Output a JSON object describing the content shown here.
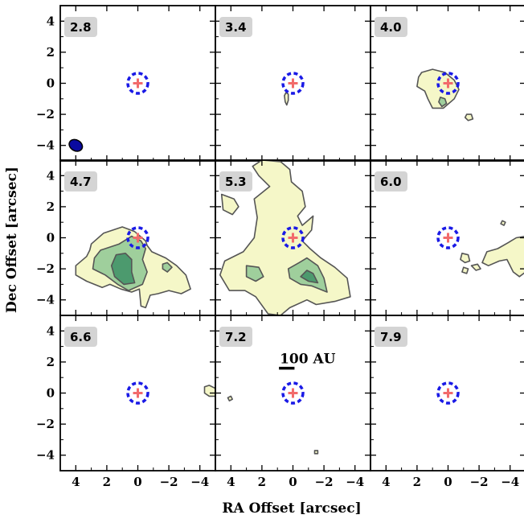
{
  "chart_data": {
    "type": "contour_grid",
    "xlabel": "RA Offset [arcsec]",
    "ylabel": "Dec Offset [arcsec]",
    "xlim": [
      5,
      -5
    ],
    "ylim": [
      -5,
      5
    ],
    "x_ticks": [
      4,
      2,
      0,
      -2,
      -4
    ],
    "y_ticks": [
      4,
      2,
      0,
      -2,
      -4
    ],
    "x_tick_labels": [
      "4",
      "2",
      "0",
      "−2",
      "−4"
    ],
    "y_tick_labels": [
      "4",
      "2",
      "0",
      "−2",
      "−4"
    ],
    "colors": {
      "contour_low": "#f5f7c8",
      "contour_mid": "#9fcf9c",
      "contour_high": "#4c9a6e",
      "contour_line": "#555555",
      "marker_plus": "#f26b6b",
      "marker_circle": "#1a1ae6",
      "beam": "#0a0aa0",
      "label_box": "#d4d4d4"
    },
    "panels": [
      {
        "label": "2.8",
        "beam": {
          "x": 4.0,
          "y": -4.0,
          "a": 0.45,
          "b": 0.35
        },
        "contours": []
      },
      {
        "label": "3.4",
        "contours": [
          {
            "level": 1,
            "pts": [
              [
                0.45,
                -0.6
              ],
              [
                0.3,
                -0.7
              ],
              [
                0.3,
                -1.1
              ],
              [
                0.4,
                -1.4
              ],
              [
                0.5,
                -1.2
              ],
              [
                0.55,
                -0.8
              ]
            ]
          }
        ]
      },
      {
        "label": "4.0",
        "contours": [
          {
            "level": 1,
            "pts": [
              [
                1.7,
                0.7
              ],
              [
                1.0,
                0.9
              ],
              [
                0.2,
                0.7
              ],
              [
                -0.4,
                0.2
              ],
              [
                -0.7,
                -0.4
              ],
              [
                -0.4,
                -1.0
              ],
              [
                0.3,
                -1.6
              ],
              [
                1.0,
                -1.6
              ],
              [
                1.3,
                -1.0
              ],
              [
                1.5,
                -0.5
              ],
              [
                2.0,
                -0.2
              ],
              [
                1.9,
                0.4
              ]
            ]
          },
          {
            "level": 2,
            "pts": [
              [
                0.5,
                -0.9
              ],
              [
                0.2,
                -1.0
              ],
              [
                0.1,
                -1.3
              ],
              [
                0.4,
                -1.5
              ],
              [
                0.6,
                -1.2
              ]
            ]
          },
          {
            "level": 1,
            "pts": [
              [
                -1.2,
                -2.0
              ],
              [
                -1.5,
                -2.0
              ],
              [
                -1.6,
                -2.3
              ],
              [
                -1.3,
                -2.4
              ],
              [
                -1.1,
                -2.2
              ]
            ]
          }
        ]
      },
      {
        "label": "4.7",
        "contours": [
          {
            "level": 1,
            "pts": [
              [
                3.0,
                -0.4
              ],
              [
                2.2,
                0.3
              ],
              [
                1.0,
                0.7
              ],
              [
                0.2,
                0.4
              ],
              [
                -0.5,
                -0.2
              ],
              [
                -0.6,
                -0.5
              ],
              [
                -0.9,
                -0.9
              ],
              [
                -1.8,
                -1.3
              ],
              [
                -2.5,
                -1.8
              ],
              [
                -3.1,
                -2.4
              ],
              [
                -3.4,
                -3.3
              ],
              [
                -2.8,
                -3.6
              ],
              [
                -2.0,
                -3.4
              ],
              [
                -1.3,
                -3.6
              ],
              [
                -0.8,
                -3.7
              ],
              [
                -0.5,
                -4.5
              ],
              [
                -0.2,
                -4.4
              ],
              [
                -0.1,
                -3.3
              ],
              [
                0.4,
                -3.5
              ],
              [
                1.1,
                -3.3
              ],
              [
                1.8,
                -3.0
              ],
              [
                2.3,
                -3.2
              ],
              [
                3.3,
                -2.8
              ],
              [
                4.0,
                -2.4
              ],
              [
                4.0,
                -1.8
              ],
              [
                3.3,
                -1.2
              ],
              [
                3.1,
                -0.8
              ]
            ]
          },
          {
            "level": 2,
            "pts": [
              [
                2.4,
                -0.8
              ],
              [
                1.2,
                -0.4
              ],
              [
                0.4,
                0.1
              ],
              [
                -0.2,
                -0.2
              ],
              [
                -0.5,
                -0.7
              ],
              [
                -0.3,
                -1.4
              ],
              [
                -0.6,
                -2.2
              ],
              [
                -0.3,
                -3.0
              ],
              [
                0.6,
                -3.4
              ],
              [
                1.3,
                -3.0
              ],
              [
                2.1,
                -2.4
              ],
              [
                2.9,
                -2.0
              ],
              [
                2.8,
                -1.3
              ]
            ]
          },
          {
            "level": 3,
            "pts": [
              [
                1.4,
                -1.1
              ],
              [
                0.8,
                -1.0
              ],
              [
                0.4,
                -1.4
              ],
              [
                0.4,
                -2.2
              ],
              [
                0.2,
                -2.9
              ],
              [
                0.9,
                -3.0
              ],
              [
                1.5,
                -2.5
              ],
              [
                1.7,
                -1.8
              ]
            ]
          },
          {
            "level": 2,
            "pts": [
              [
                -1.6,
                -1.7
              ],
              [
                -1.9,
                -1.6
              ],
              [
                -2.2,
                -1.9
              ],
              [
                -1.9,
                -2.2
              ],
              [
                -1.6,
                -2.0
              ]
            ]
          }
        ]
      },
      {
        "label": "5.3",
        "contours": [
          {
            "level": 1,
            "pts": [
              [
                2.0,
                5.0
              ],
              [
                0.8,
                4.9
              ],
              [
                0.2,
                4.4
              ],
              [
                0.1,
                3.6
              ],
              [
                -0.6,
                3.0
              ],
              [
                -0.8,
                2.0
              ],
              [
                -0.3,
                1.4
              ],
              [
                -0.6,
                0.8
              ],
              [
                -1.3,
                1.4
              ],
              [
                -1.2,
                0.5
              ],
              [
                -0.6,
                -0.2
              ],
              [
                -1.1,
                -0.7
              ],
              [
                -1.8,
                -1.3
              ],
              [
                -2.7,
                -1.9
              ],
              [
                -3.5,
                -2.6
              ],
              [
                -3.7,
                -3.8
              ],
              [
                -2.7,
                -4.1
              ],
              [
                -1.5,
                -4.3
              ],
              [
                -0.9,
                -4.0
              ],
              [
                0.2,
                -4.5
              ],
              [
                0.8,
                -5.0
              ],
              [
                1.6,
                -4.9
              ],
              [
                2.4,
                -3.8
              ],
              [
                3.1,
                -3.4
              ],
              [
                4.1,
                -3.4
              ],
              [
                4.7,
                -2.4
              ],
              [
                4.4,
                -1.5
              ],
              [
                3.2,
                -0.9
              ],
              [
                2.5,
                0.0
              ],
              [
                2.3,
                1.3
              ],
              [
                2.5,
                2.5
              ],
              [
                1.5,
                3.3
              ],
              [
                2.2,
                4.0
              ],
              [
                2.6,
                4.6
              ]
            ]
          },
          {
            "level": 1,
            "pts": [
              [
                4.6,
                2.8
              ],
              [
                3.8,
                2.5
              ],
              [
                3.5,
                2.0
              ],
              [
                3.9,
                1.5
              ],
              [
                4.5,
                1.8
              ]
            ]
          },
          {
            "level": 2,
            "pts": [
              [
                -0.4,
                -1.6
              ],
              [
                -0.9,
                -1.3
              ],
              [
                -1.6,
                -1.8
              ],
              [
                -2.0,
                -2.6
              ],
              [
                -2.2,
                -3.5
              ],
              [
                -1.2,
                -3.1
              ],
              [
                -0.5,
                -3.0
              ],
              [
                0.2,
                -2.6
              ],
              [
                0.3,
                -2.0
              ]
            ]
          },
          {
            "level": 3,
            "pts": [
              [
                -0.9,
                -2.1
              ],
              [
                -1.3,
                -2.3
              ],
              [
                -1.6,
                -2.9
              ],
              [
                -1.0,
                -2.8
              ],
              [
                -0.5,
                -2.5
              ]
            ]
          },
          {
            "level": 2,
            "pts": [
              [
                3.0,
                -1.8
              ],
              [
                2.2,
                -1.9
              ],
              [
                1.9,
                -2.5
              ],
              [
                2.4,
                -2.8
              ],
              [
                3.0,
                -2.5
              ]
            ]
          }
        ]
      },
      {
        "label": "6.0",
        "contours": [
          {
            "level": 1,
            "pts": [
              [
                -2.2,
                -1.6
              ],
              [
                -2.5,
                -0.9
              ],
              [
                -3.2,
                -0.7
              ],
              [
                -3.9,
                -0.3
              ],
              [
                -4.4,
                0.0
              ],
              [
                -5.0,
                0.1
              ],
              [
                -5.0,
                -2.2
              ],
              [
                -4.6,
                -2.5
              ],
              [
                -4.2,
                -2.2
              ],
              [
                -3.8,
                -1.4
              ],
              [
                -3.3,
                -1.5
              ],
              [
                -2.6,
                -1.8
              ]
            ]
          },
          {
            "level": 1,
            "pts": [
              [
                -0.9,
                -1.0
              ],
              [
                -1.3,
                -1.1
              ],
              [
                -1.4,
                -1.5
              ],
              [
                -1.1,
                -1.6
              ],
              [
                -0.8,
                -1.4
              ]
            ]
          },
          {
            "level": 1,
            "pts": [
              [
                -1.5,
                -1.8
              ],
              [
                -1.9,
                -1.7
              ],
              [
                -2.1,
                -2.0
              ],
              [
                -1.8,
                -2.1
              ]
            ]
          },
          {
            "level": 1,
            "pts": [
              [
                -1.0,
                -1.9
              ],
              [
                -1.3,
                -2.0
              ],
              [
                -1.2,
                -2.3
              ],
              [
                -0.9,
                -2.2
              ]
            ]
          },
          {
            "level": 1,
            "pts": [
              [
                -3.5,
                1.1
              ],
              [
                -3.7,
                1.0
              ],
              [
                -3.6,
                0.8
              ],
              [
                -3.4,
                0.9
              ]
            ]
          }
        ]
      },
      {
        "label": "6.6",
        "contours": [
          {
            "level": 1,
            "pts": [
              [
                -4.3,
                0.4
              ],
              [
                -4.6,
                0.5
              ],
              [
                -5.0,
                0.3
              ],
              [
                -5.0,
                -0.2
              ],
              [
                -4.6,
                -0.2
              ],
              [
                -4.3,
                0.0
              ]
            ]
          }
        ]
      },
      {
        "label": "7.2",
        "contours": [
          {
            "level": 1,
            "pts": [
              [
                4.2,
                -0.3
              ],
              [
                4.0,
                -0.2
              ],
              [
                3.9,
                -0.4
              ],
              [
                4.1,
                -0.5
              ]
            ]
          },
          {
            "level": 1,
            "pts": [
              [
                -1.4,
                -3.7
              ],
              [
                -1.6,
                -3.7
              ],
              [
                -1.6,
                -3.9
              ],
              [
                -1.4,
                -3.9
              ]
            ]
          }
        ],
        "scalebar": {
          "label": "100 AU",
          "x_center": 0.4,
          "y": 1.6,
          "length": 1.0
        }
      },
      {
        "label": "7.9",
        "contours": []
      }
    ]
  }
}
